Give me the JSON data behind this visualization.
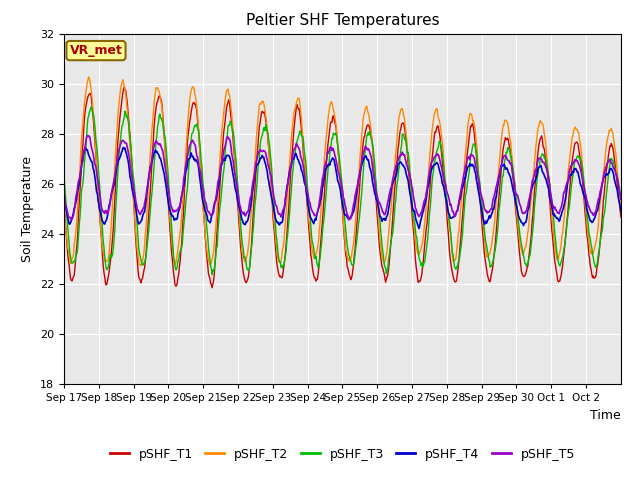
{
  "title": "Peltier SHF Temperatures",
  "xlabel": "Time",
  "ylabel": "Soil Temperature",
  "ylim": [
    18,
    32
  ],
  "yticks": [
    18,
    20,
    22,
    24,
    26,
    28,
    30,
    32
  ],
  "annotation": "VR_met",
  "colors": {
    "pSHF_T1": "#cc0000",
    "pSHF_T2": "#ff8800",
    "pSHF_T3": "#00bb00",
    "pSHF_T4": "#0000cc",
    "pSHF_T5": "#9900cc"
  },
  "bg_color": "#e8e8e8",
  "fig_bg": "#ffffff",
  "grid_color": "#ffffff",
  "xtick_labels": [
    "Sep 17",
    "Sep 18",
    "Sep 19",
    "Sep 20",
    "Sep 21",
    "Sep 22",
    "Sep 23",
    "Sep 24",
    "Sep 25",
    "Sep 26",
    "Sep 27",
    "Sep 28",
    "Sep 29",
    "Sep 30",
    "Oct 1",
    "Oct 2"
  ],
  "n_days": 16,
  "legend_entries": [
    "pSHF_T1",
    "pSHF_T2",
    "pSHF_T3",
    "pSHF_T4",
    "pSHF_T5"
  ]
}
